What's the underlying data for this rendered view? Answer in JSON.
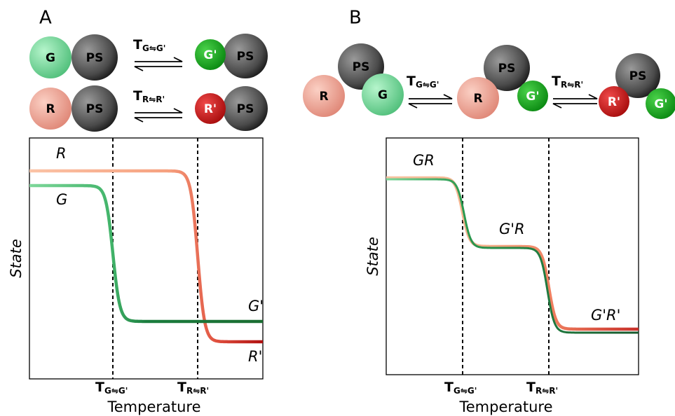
{
  "panel_a": {
    "label": "A",
    "complexes": [
      {
        "ligand": "G",
        "protein": "PS"
      },
      {
        "ligand": "G'",
        "protein": "PS"
      },
      {
        "ligand": "R",
        "protein": "PS"
      },
      {
        "ligand": "R'",
        "protein": "PS"
      }
    ],
    "equilibria": [
      {
        "symbol": "T",
        "subscript": "G⇋G'"
      },
      {
        "symbol": "T",
        "subscript": "R⇋R'"
      }
    ],
    "plot": {
      "curve_labels": [
        "R",
        "G",
        "G'",
        "R'"
      ],
      "y_label": "State",
      "x_label": "Temperature",
      "x_ticks": [
        {
          "symbol": "T",
          "subscript": "G⇋G'"
        },
        {
          "symbol": "T",
          "subscript": "R⇋R'"
        }
      ]
    }
  },
  "panel_b": {
    "label": "B",
    "complexes": [
      {
        "protein": "PS",
        "red": "R",
        "green": "G"
      },
      {
        "protein": "PS",
        "red": "R",
        "green": "G'"
      },
      {
        "protein": "PS",
        "red": "R'",
        "green": "G'"
      }
    ],
    "equilibria": [
      {
        "symbol": "T",
        "subscript": "G⇋G'"
      },
      {
        "symbol": "T",
        "subscript": "R⇋R'"
      }
    ],
    "plot": {
      "curve_labels": [
        "GR",
        "G'R",
        "G'R'"
      ],
      "y_label": "State",
      "x_label": "Temperature",
      "x_ticks": [
        {
          "symbol": "T",
          "subscript": "G⇋G'"
        },
        {
          "symbol": "T",
          "subscript": "R⇋R'"
        }
      ]
    }
  }
}
